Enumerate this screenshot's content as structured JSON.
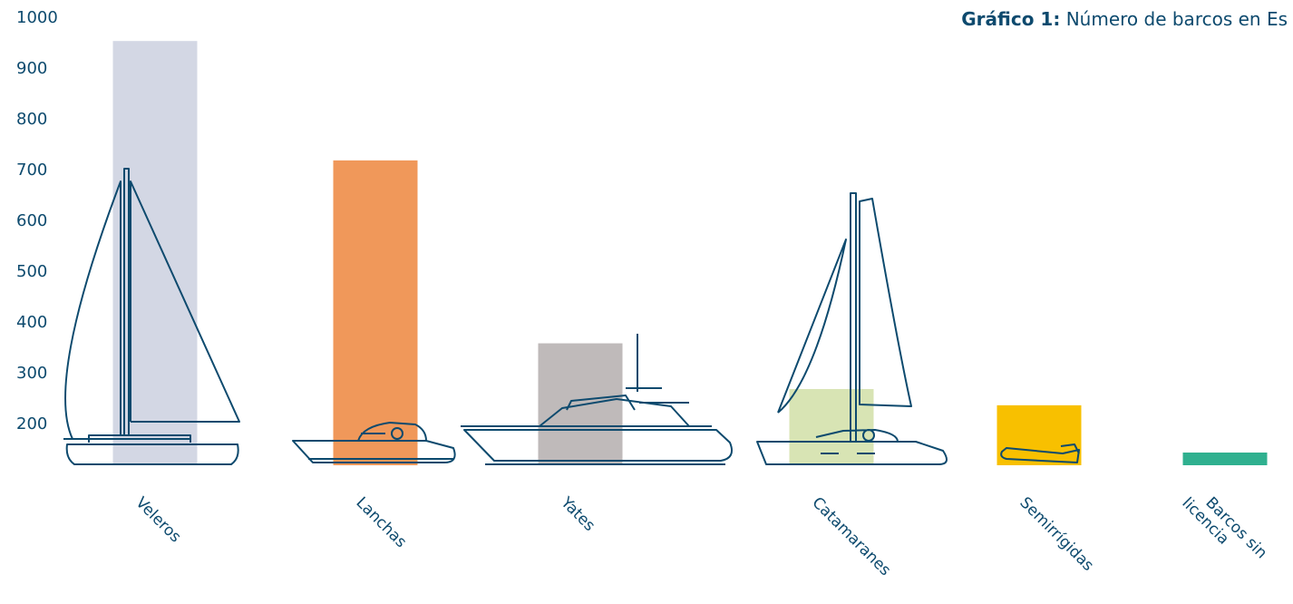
{
  "chart_data": {
    "type": "bar",
    "title_label": "Gráfico 1:",
    "title": "Número de barcos en Es",
    "categories": [
      "Veleros",
      "Lanchas",
      "Yates",
      "Catamaranes",
      "Semirrígidas",
      "Barcos sin licencia"
    ],
    "values": [
      955,
      720,
      360,
      270,
      238,
      145
    ],
    "colors": [
      "#d3d7e4",
      "#f0985a",
      "#bfbaba",
      "#d8e4b4",
      "#f8c000",
      "#2fb08f"
    ],
    "ylim": [
      120,
      1000
    ],
    "yticks": [
      200,
      300,
      400,
      500,
      600,
      700,
      800,
      900,
      1000
    ]
  }
}
